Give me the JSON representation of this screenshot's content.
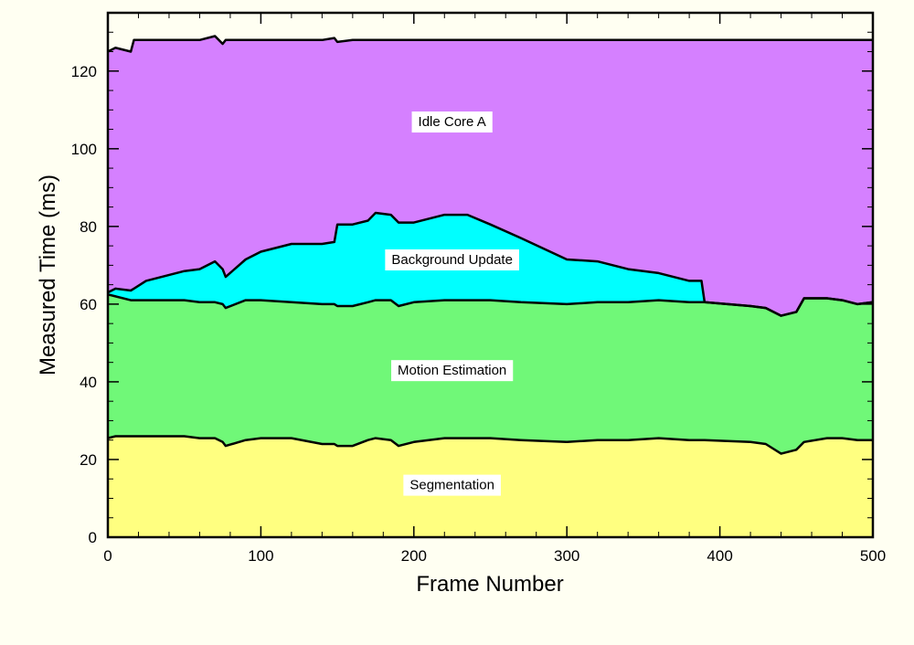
{
  "chart_data": {
    "type": "area",
    "stacked": true,
    "xlabel": "Frame Number",
    "ylabel": "Measured Time (ms)",
    "xlim": [
      0,
      500
    ],
    "ylim": [
      0,
      135
    ],
    "xticks": [
      0,
      100,
      200,
      300,
      400,
      500
    ],
    "yticks": [
      0,
      20,
      40,
      60,
      80,
      100,
      120
    ],
    "grid": false,
    "x": [
      0,
      5,
      15,
      17,
      25,
      50,
      60,
      70,
      75,
      77,
      90,
      100,
      120,
      140,
      148,
      150,
      160,
      170,
      175,
      185,
      190,
      200,
      220,
      235,
      250,
      270,
      300,
      320,
      340,
      360,
      380,
      388,
      390,
      420,
      430,
      440,
      450,
      455,
      470,
      480,
      490,
      500
    ],
    "series": [
      {
        "name": "Segmentation",
        "color": "#ffff80",
        "values": [
          25.5,
          26,
          26,
          26,
          26,
          26,
          25.5,
          25.5,
          24.5,
          23.5,
          25,
          25.5,
          25.5,
          24,
          24,
          23.5,
          23.5,
          25,
          25.5,
          25,
          23.5,
          24.5,
          25.5,
          25.5,
          25.5,
          25,
          24.5,
          25,
          25,
          25.5,
          25,
          25,
          25,
          24.5,
          24,
          21.5,
          22.5,
          24.5,
          25.5,
          25.5,
          25,
          25
        ]
      },
      {
        "name": "Motion Estimation",
        "color": "#70f878",
        "values": [
          37,
          36,
          35,
          35,
          35,
          35,
          35,
          35,
          35.5,
          35.5,
          36,
          35.5,
          35,
          36,
          36,
          36,
          36,
          35.5,
          35.5,
          36,
          36,
          36,
          35.5,
          35.5,
          35.5,
          35.5,
          35.5,
          35.5,
          35.5,
          35.5,
          35.5,
          35.5,
          35.5,
          35,
          35,
          35.5,
          35.5,
          37,
          36,
          35.5,
          35,
          35.5
        ]
      },
      {
        "name": "Background Update",
        "color": "#00ffff",
        "values": [
          0.5,
          2,
          2.5,
          3,
          5,
          7.5,
          8.5,
          10.5,
          9,
          8,
          10.5,
          12.5,
          15,
          15.5,
          16,
          21,
          21,
          21,
          22.5,
          22,
          21.5,
          20.5,
          22,
          22,
          19.5,
          16.5,
          11.5,
          10.5,
          8.5,
          7,
          5.5,
          5.5,
          0,
          0,
          0,
          0,
          0,
          0,
          0,
          0,
          0,
          0
        ]
      },
      {
        "name": "Idle Core A",
        "color": "#d580ff",
        "values": [
          62,
          62,
          61.5,
          64,
          62,
          59.5,
          59,
          58,
          58,
          61,
          56.5,
          54.5,
          52.5,
          52.5,
          52.5,
          47,
          47.5,
          46.5,
          44.5,
          45,
          47,
          47,
          45,
          45,
          47.5,
          51,
          56.5,
          57,
          59,
          60,
          62,
          62,
          67.5,
          68.5,
          69,
          71,
          70,
          66.5,
          66.5,
          67,
          68,
          67.5
        ]
      }
    ],
    "annotations": [
      {
        "text": "Idle Core A",
        "x": 225,
        "y": 107
      },
      {
        "text": "Background Update",
        "x": 225,
        "y": 71.5
      },
      {
        "text": "Motion Estimation",
        "x": 225,
        "y": 43
      },
      {
        "text": "Segmentation",
        "x": 225,
        "y": 13.5
      }
    ]
  }
}
